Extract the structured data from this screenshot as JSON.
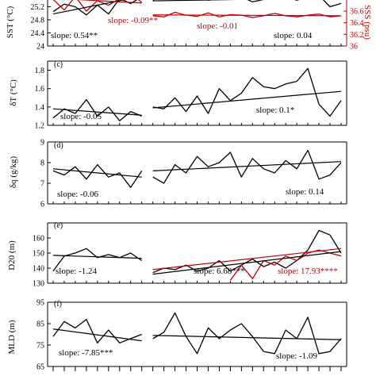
{
  "chart_data": [
    {
      "id": "b",
      "type": "line",
      "panel_label": "",
      "ylabel": "SST (°C)",
      "ylim": [
        24.0,
        25.6
      ],
      "yticks": [
        24.0,
        24.4,
        24.8,
        25.2
      ],
      "ytick_labels": [
        "24",
        "24.4",
        "24.8",
        "25.2"
      ],
      "ylabel_right": "SSS (psu)",
      "ylim_right": [
        36.0,
        36.9
      ],
      "yticks_right": [
        36.0,
        36.2,
        36.4,
        36.6
      ],
      "ytick_labels_right": [
        "36",
        "36.2",
        "36.4",
        "36.6"
      ],
      "segments": [
        {
          "x_start": 0,
          "x_end": 8,
          "series": [
            {
              "color": "#000000",
              "axis": "left",
              "values": [
                25.05,
                25.28,
                25.2,
                24.95,
                25.25,
                24.98,
                25.45,
                25.3,
                25.5
              ]
            },
            {
              "color": "#c00000",
              "axis": "right",
              "values": [
                36.8,
                36.62,
                36.85,
                36.6,
                36.78,
                36.7,
                36.82,
                36.9,
                36.75
              ]
            }
          ],
          "trends": [
            {
              "color": "#000000",
              "axis": "left",
              "start": 24.98,
              "end": 25.52
            },
            {
              "color": "#c00000",
              "axis": "right",
              "start": 36.82,
              "end": 36.74
            }
          ]
        },
        {
          "x_start": 9,
          "x_end": 26,
          "series": [
            {
              "color": "#000000",
              "axis": "left",
              "values": [
                25.4,
                25.55,
                25.42,
                25.5,
                25.58,
                25.4,
                25.45,
                25.52,
                25.5,
                25.35,
                25.42,
                25.56,
                25.5,
                25.4,
                25.5,
                25.55,
                25.2,
                25.3
              ]
            },
            {
              "color": "#c00000",
              "axis": "right",
              "values": [
                36.52,
                36.5,
                36.58,
                36.53,
                36.51,
                36.57,
                36.5,
                36.54,
                36.53,
                36.49,
                36.52,
                36.56,
                36.52,
                36.5,
                36.53,
                36.55,
                36.5,
                36.52
              ]
            }
          ],
          "trends": [
            {
              "color": "#000000",
              "axis": "left",
              "start": 25.38,
              "end": 25.47
            },
            {
              "color": "#c00000",
              "axis": "right",
              "start": 36.535,
              "end": 36.52
            }
          ]
        }
      ],
      "annotations": [
        {
          "text": "slope: 0.54**",
          "color": "#000000"
        },
        {
          "text": "slope: -0.09**",
          "color": "#c00000"
        },
        {
          "text": "slope: -0.01",
          "color": "#c00000"
        },
        {
          "text": "slope: 0.04",
          "color": "#000000"
        }
      ]
    },
    {
      "id": "c",
      "type": "line",
      "panel_label": "(c)",
      "ylabel": "δT (°C)",
      "ylim": [
        1.2,
        1.9
      ],
      "yticks": [
        1.2,
        1.4,
        1.6,
        1.8
      ],
      "ytick_labels": [
        "1.2",
        "1.4",
        "1.6",
        "1.8"
      ],
      "segments": [
        {
          "x_start": 0,
          "x_end": 8,
          "series": [
            {
              "color": "#000000",
              "values": [
                1.28,
                1.38,
                1.33,
                1.48,
                1.3,
                1.4,
                1.25,
                1.35,
                1.3
              ]
            }
          ],
          "trends": [
            {
              "color": "#000000",
              "start": 1.38,
              "end": 1.31
            }
          ]
        },
        {
          "x_start": 9,
          "x_end": 26,
          "series": [
            {
              "color": "#000000",
              "values": [
                1.4,
                1.38,
                1.5,
                1.35,
                1.52,
                1.33,
                1.6,
                1.47,
                1.55,
                1.72,
                1.62,
                1.6,
                1.65,
                1.68,
                1.82,
                1.43,
                1.3,
                1.47
              ]
            }
          ],
          "trends": [
            {
              "color": "#000000",
              "start": 1.39,
              "end": 1.57
            }
          ]
        }
      ],
      "annotations": [
        {
          "text": "slope: -0.05",
          "color": "#000000"
        },
        {
          "text": "slope: 0.1*",
          "color": "#000000"
        }
      ]
    },
    {
      "id": "d",
      "type": "line",
      "panel_label": "(d)",
      "ylabel": "δq (g/kg)",
      "ylim": [
        6.0,
        9.0
      ],
      "yticks": [
        6,
        7,
        8,
        9
      ],
      "ytick_labels": [
        "6",
        "7",
        "8",
        "9"
      ],
      "segments": [
        {
          "x_start": 0,
          "x_end": 8,
          "series": [
            {
              "color": "#000000",
              "values": [
                7.6,
                7.4,
                7.8,
                7.2,
                7.9,
                7.3,
                7.5,
                6.8,
                7.6
              ]
            }
          ],
          "trends": [
            {
              "color": "#000000",
              "start": 7.7,
              "end": 7.3
            }
          ]
        },
        {
          "x_start": 9,
          "x_end": 26,
          "series": [
            {
              "color": "#000000",
              "values": [
                7.3,
                7.0,
                7.9,
                7.5,
                8.3,
                7.8,
                8.0,
                8.5,
                7.3,
                8.2,
                7.7,
                7.5,
                8.1,
                7.7,
                8.6,
                7.2,
                7.4,
                8.0
              ]
            }
          ],
          "trends": [
            {
              "color": "#000000",
              "start": 7.6,
              "end": 8.05
            }
          ]
        }
      ],
      "annotations": [
        {
          "text": "slope: -0.06",
          "color": "#000000"
        },
        {
          "text": "slope: 0.14",
          "color": "#000000"
        }
      ]
    },
    {
      "id": "e",
      "type": "line",
      "panel_label": "(e)",
      "ylabel": "D20 (m)",
      "ylim": [
        130,
        170
      ],
      "yticks": [
        130,
        140,
        150,
        160
      ],
      "ytick_labels": [
        "130",
        "140",
        "150",
        "160"
      ],
      "segments": [
        {
          "x_start": 0,
          "x_end": 8,
          "series": [
            {
              "color": "#000000",
              "values": [
                138,
                148,
                150,
                153,
                147,
                149,
                147,
                150,
                145
              ]
            }
          ],
          "trends": [
            {
              "color": "#000000",
              "start": 148.5,
              "end": 146.5
            }
          ]
        },
        {
          "x_start": 9,
          "x_end": 26,
          "series": [
            {
              "color": "#000000",
              "values": [
                137,
                140,
                139,
                142,
                138,
                140,
                145,
                138,
                142,
                146,
                141,
                144,
                140,
                145,
                152,
                165,
                162,
                150
              ]
            },
            {
              "color": "#c00000",
              "values": [
                null,
                null,
                null,
                null,
                null,
                null,
                null,
                132,
                142,
                133,
                145,
                142,
                148,
                145,
                150,
                152,
                150,
                148
              ]
            }
          ],
          "trends": [
            {
              "color": "#000000",
              "start": 136,
              "end": 151
            },
            {
              "color": "#c00000",
              "start": 139,
              "end": 153
            }
          ]
        }
      ],
      "annotations": [
        {
          "text": "slope: -1.24",
          "color": "#000000"
        },
        {
          "text": "slope: 6.68***",
          "color": "#000000"
        },
        {
          "text": "slope: 17.93****",
          "color": "#c00000"
        }
      ]
    },
    {
      "id": "f",
      "type": "line",
      "panel_label": "(f)",
      "ylabel": "MLD (m)",
      "ylim": [
        65,
        95
      ],
      "yticks": [
        65,
        75,
        85,
        95
      ],
      "ytick_labels": [
        "65",
        "75",
        "85",
        "95"
      ],
      "segments": [
        {
          "x_start": 0,
          "x_end": 8,
          "series": [
            {
              "color": "#000000",
              "values": [
                79,
                86,
                83,
                87,
                76,
                82,
                76,
                78,
                80
              ]
            }
          ],
          "trends": [
            {
              "color": "#000000",
              "start": 82.5,
              "end": 77
            }
          ]
        },
        {
          "x_start": 9,
          "x_end": 26,
          "series": [
            {
              "color": "#000000",
              "values": [
                78,
                81,
                90,
                79,
                71,
                83,
                78,
                82,
                85,
                79,
                72,
                71,
                82,
                78,
                88,
                71,
                72,
                78
              ]
            }
          ],
          "trends": [
            {
              "color": "#000000",
              "start": 79.5,
              "end": 77.5
            }
          ]
        }
      ],
      "annotations": [
        {
          "text": "slope: -7.85***",
          "color": "#000000"
        },
        {
          "text": "slope: -1.09",
          "color": "#000000"
        }
      ]
    }
  ]
}
